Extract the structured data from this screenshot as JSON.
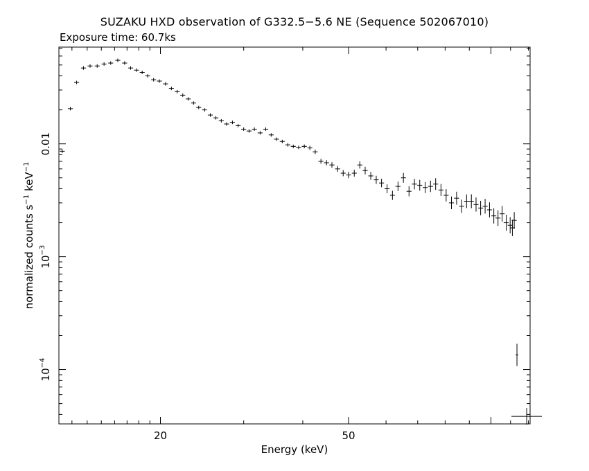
{
  "chart_data": {
    "type": "scatter",
    "title": "SUZAKU HXD observation of G332.5−5.6 NE (Sequence 502067010)",
    "subtitle": "Exposure time: 60.7ks",
    "xlabel": "Energy (keV)",
    "ylabel": "normalized counts s",
    "ylabel_units": [
      {
        "text": " s",
        "sup": "−1"
      },
      {
        "text": " keV",
        "sup": "−1"
      }
    ],
    "x_scale": "log",
    "y_scale": "log",
    "xlim": [
      12.2,
      121
    ],
    "ylim": [
      3.3e-05,
      0.072
    ],
    "x_ticks": [
      {
        "value": 20,
        "label": "20"
      },
      {
        "value": 50,
        "label": "50"
      }
    ],
    "y_ticks": [
      {
        "value": 0.01,
        "mantissa": "0.01",
        "exp": ""
      },
      {
        "value": 0.001,
        "mantissa": "10",
        "exp": "−3"
      },
      {
        "value": 0.0001,
        "mantissa": "10",
        "exp": "−4"
      }
    ],
    "grid": false,
    "series": [
      {
        "values": [
          [
            12.4,
            0.0086
          ],
          [
            12.9,
            0.0205
          ],
          [
            13.3,
            0.035
          ],
          [
            13.75,
            0.047
          ],
          [
            14.2,
            0.049
          ],
          [
            14.7,
            0.049
          ],
          [
            15.2,
            0.051
          ],
          [
            15.7,
            0.052
          ],
          [
            16.25,
            0.055
          ],
          [
            16.8,
            0.052
          ],
          [
            17.3,
            0.047
          ],
          [
            17.8,
            0.045
          ],
          [
            18.3,
            0.043
          ],
          [
            18.8,
            0.04
          ],
          [
            19.35,
            0.037
          ],
          [
            19.9,
            0.036
          ],
          [
            20.5,
            0.034
          ],
          [
            21.1,
            0.031
          ],
          [
            21.7,
            0.029
          ],
          [
            22.3,
            0.027
          ],
          [
            22.9,
            0.025
          ],
          [
            23.5,
            0.023
          ],
          [
            24.1,
            0.021
          ],
          [
            24.8,
            0.02
          ],
          [
            25.5,
            0.018
          ],
          [
            26.2,
            0.017
          ],
          [
            26.9,
            0.016
          ],
          [
            27.6,
            0.015
          ],
          [
            28.4,
            0.0155
          ],
          [
            29.2,
            0.0145
          ],
          [
            30.0,
            0.0135
          ],
          [
            30.8,
            0.013
          ],
          [
            31.6,
            0.0135
          ],
          [
            32.5,
            0.0125
          ],
          [
            33.4,
            0.0135
          ],
          [
            34.3,
            0.012
          ],
          [
            35.2,
            0.011
          ],
          [
            36.2,
            0.0105
          ],
          [
            37.2,
            0.0098
          ],
          [
            38.2,
            0.0095
          ],
          [
            39.2,
            0.0093
          ],
          [
            40.3,
            0.0095
          ],
          [
            41.4,
            0.0092
          ],
          [
            42.5,
            0.0085
          ],
          [
            43.7,
            0.007
          ],
          [
            44.9,
            0.0068
          ],
          [
            46.1,
            0.0065
          ],
          [
            47.4,
            0.006
          ],
          [
            48.7,
            0.0055
          ],
          [
            50.0,
            0.0053
          ],
          [
            51.4,
            0.0055
          ],
          [
            52.8,
            0.0065
          ],
          [
            54.2,
            0.0058
          ],
          [
            55.7,
            0.0052
          ],
          [
            57.2,
            0.0048
          ],
          [
            58.7,
            0.0045
          ],
          [
            60.3,
            0.004
          ],
          [
            61.9,
            0.0035
          ],
          [
            63.6,
            0.0042
          ],
          [
            65.3,
            0.005
          ],
          [
            67.1,
            0.0038
          ],
          [
            68.9,
            0.0044
          ],
          [
            70.7,
            0.0043
          ],
          [
            72.6,
            0.0041
          ],
          [
            74.5,
            0.0042
          ],
          [
            76.4,
            0.0044
          ],
          [
            78.4,
            0.0039
          ],
          [
            80.4,
            0.0035
          ],
          [
            82.5,
            0.003
          ],
          [
            84.6,
            0.0033
          ],
          [
            86.7,
            0.0028
          ],
          [
            88.8,
            0.0031
          ],
          [
            90.9,
            0.0031
          ],
          [
            93.0,
            0.0029
          ],
          [
            95.1,
            0.0027
          ],
          [
            97.2,
            0.0028
          ],
          [
            99.3,
            0.0026
          ],
          [
            101.4,
            0.0023
          ],
          [
            103.5,
            0.0022
          ],
          [
            105.6,
            0.0024
          ],
          [
            107.7,
            0.002
          ],
          [
            109.8,
            0.0019
          ],
          [
            111.0,
            0.0018
          ],
          [
            112.0,
            0.0021
          ]
        ]
      },
      {
        "values": [
          [
            113.5,
            0.000135
          ],
          [
            119.0,
            3.85e-05
          ]
        ]
      }
    ]
  }
}
